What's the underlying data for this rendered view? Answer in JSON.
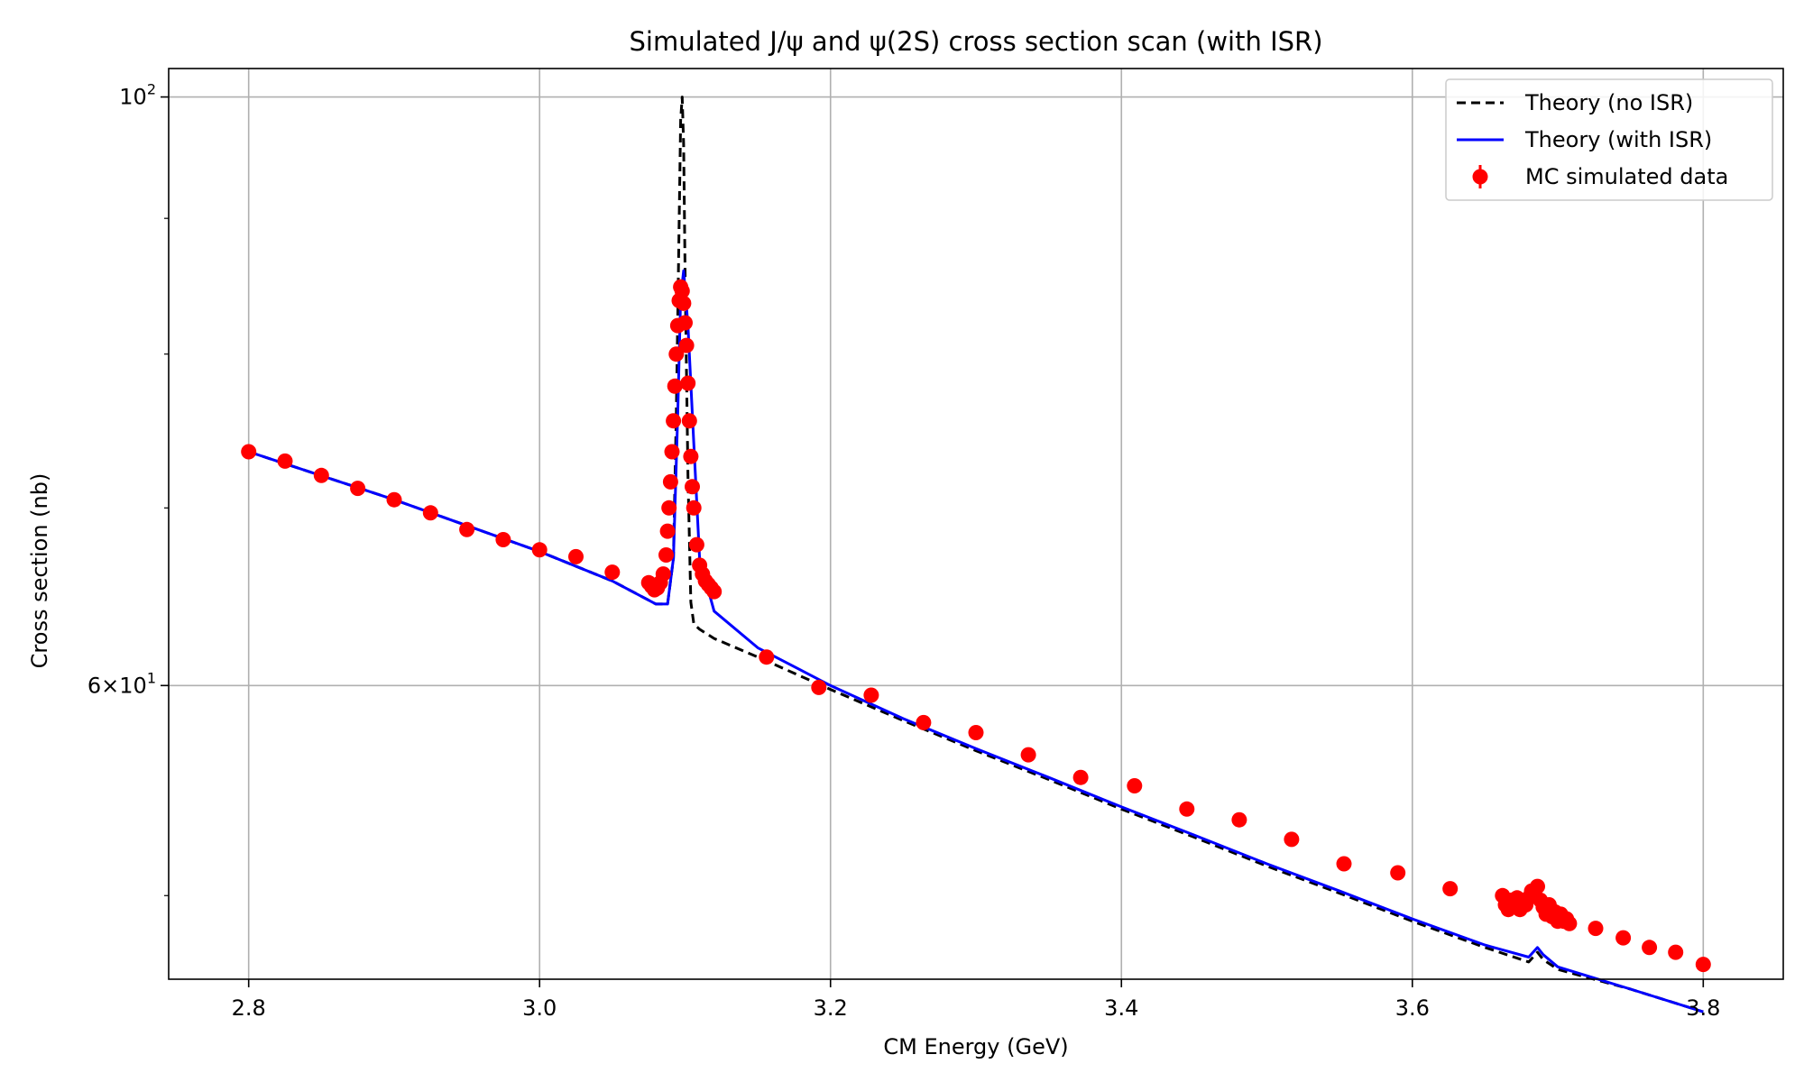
{
  "chart_data": {
    "type": "scatter",
    "title": "Simulated J/ψ and ψ(2S) cross section scan (with ISR)",
    "xlabel": "CM Energy (GeV)",
    "ylabel": "Cross section (nb)",
    "xlim": [
      2.745,
      3.855
    ],
    "ylim": [
      46.5,
      102.5
    ],
    "yscale": "log",
    "x_ticks": [
      2.8,
      3.0,
      3.2,
      3.4,
      3.6,
      3.8
    ],
    "x_tick_labels": [
      "2.8",
      "3.0",
      "3.2",
      "3.4",
      "3.6",
      "3.8"
    ],
    "y_major_ticks": [
      {
        "value": 100,
        "base": "10",
        "exp": "2"
      },
      {
        "value": 60,
        "mant": "6",
        "base": "10",
        "exp": "1"
      }
    ],
    "y_minor_ticks": [
      50,
      70,
      80,
      90
    ],
    "grid": true,
    "legend_position": "top-right",
    "colors": {
      "theory_no_isr": "#000000",
      "theory_with_isr": "#0000ff",
      "mc_data": "#ff0000",
      "grid": "#b0b0b0"
    },
    "series": [
      {
        "name": "Theory (no ISR)",
        "style": "dashed",
        "x": [
          2.8,
          2.9,
          3.0,
          3.05,
          3.08,
          3.088,
          3.092,
          3.094,
          3.096,
          3.097,
          3.098,
          3.099,
          3.1,
          3.102,
          3.104,
          3.106,
          3.11,
          3.12,
          3.15,
          3.2,
          3.25,
          3.3,
          3.35,
          3.4,
          3.45,
          3.5,
          3.55,
          3.6,
          3.65,
          3.68,
          3.686,
          3.69,
          3.7,
          3.75,
          3.8
        ],
        "y": [
          73.5,
          70.5,
          67.4,
          65.7,
          64.4,
          64.4,
          67.0,
          76.0,
          90.0,
          98.0,
          100.0,
          96.0,
          86.0,
          72.0,
          64.5,
          63.3,
          63.0,
          62.5,
          61.5,
          59.8,
          58.2,
          56.7,
          55.3,
          53.9,
          52.6,
          51.3,
          50.1,
          48.9,
          47.8,
          47.2,
          47.6,
          47.3,
          46.9,
          46.1,
          45.2
        ]
      },
      {
        "name": "Theory (with ISR)",
        "style": "solid",
        "x": [
          2.8,
          2.9,
          3.0,
          3.05,
          3.08,
          3.088,
          3.092,
          3.095,
          3.097,
          3.099,
          3.102,
          3.106,
          3.11,
          3.12,
          3.15,
          3.2,
          3.25,
          3.3,
          3.35,
          3.4,
          3.45,
          3.5,
          3.55,
          3.6,
          3.65,
          3.68,
          3.686,
          3.69,
          3.7,
          3.75,
          3.8
        ],
        "y": [
          73.5,
          70.5,
          67.4,
          65.7,
          64.4,
          64.4,
          67.0,
          76.0,
          84.0,
          86.0,
          82.0,
          74.0,
          67.0,
          64.0,
          62.0,
          60.0,
          58.3,
          56.8,
          55.4,
          54.0,
          52.7,
          51.4,
          50.2,
          49.0,
          47.9,
          47.4,
          47.8,
          47.5,
          47.0,
          46.1,
          45.2
        ]
      }
    ],
    "scatter_series": {
      "name": "MC simulated data",
      "x": [
        2.8,
        2.825,
        2.85,
        2.875,
        2.9,
        2.925,
        2.95,
        2.975,
        3.0,
        3.025,
        3.05,
        3.075,
        3.077,
        3.079,
        3.081,
        3.083,
        3.085,
        3.087,
        3.088,
        3.089,
        3.09,
        3.091,
        3.092,
        3.093,
        3.094,
        3.095,
        3.096,
        3.097,
        3.098,
        3.099,
        3.1,
        3.101,
        3.102,
        3.103,
        3.104,
        3.105,
        3.106,
        3.108,
        3.11,
        3.112,
        3.114,
        3.116,
        3.118,
        3.12,
        3.156,
        3.192,
        3.228,
        3.264,
        3.3,
        3.336,
        3.372,
        3.409,
        3.445,
        3.481,
        3.517,
        3.553,
        3.59,
        3.626,
        3.662,
        3.664,
        3.666,
        3.668,
        3.67,
        3.672,
        3.674,
        3.676,
        3.678,
        3.68,
        3.682,
        3.684,
        3.686,
        3.688,
        3.69,
        3.692,
        3.694,
        3.696,
        3.698,
        3.7,
        3.702,
        3.704,
        3.706,
        3.708,
        3.726,
        3.745,
        3.763,
        3.781,
        3.8
      ],
      "y": [
        73.5,
        72.9,
        72.0,
        71.2,
        70.5,
        69.7,
        68.7,
        68.1,
        67.5,
        67.1,
        66.2,
        65.6,
        65.4,
        65.2,
        65.3,
        65.6,
        66.1,
        67.2,
        68.6,
        70.0,
        71.6,
        73.5,
        75.5,
        77.8,
        80.0,
        82.0,
        83.8,
        84.8,
        84.5,
        83.6,
        82.2,
        80.6,
        78.0,
        75.5,
        73.2,
        71.3,
        70.0,
        67.8,
        66.6,
        66.1,
        65.7,
        65.5,
        65.3,
        65.1,
        61.5,
        59.9,
        59.5,
        58.1,
        57.6,
        56.5,
        55.4,
        55.0,
        53.9,
        53.4,
        52.5,
        51.4,
        51.0,
        50.3,
        50.0,
        49.6,
        49.4,
        49.8,
        49.6,
        49.9,
        49.4,
        49.7,
        49.6,
        49.9,
        50.2,
        50.0,
        50.4,
        49.8,
        49.5,
        49.2,
        49.6,
        49.1,
        49.3,
        48.9,
        49.2,
        48.9,
        49.0,
        48.8,
        48.6,
        48.2,
        47.8,
        47.6,
        47.1
      ]
    }
  }
}
